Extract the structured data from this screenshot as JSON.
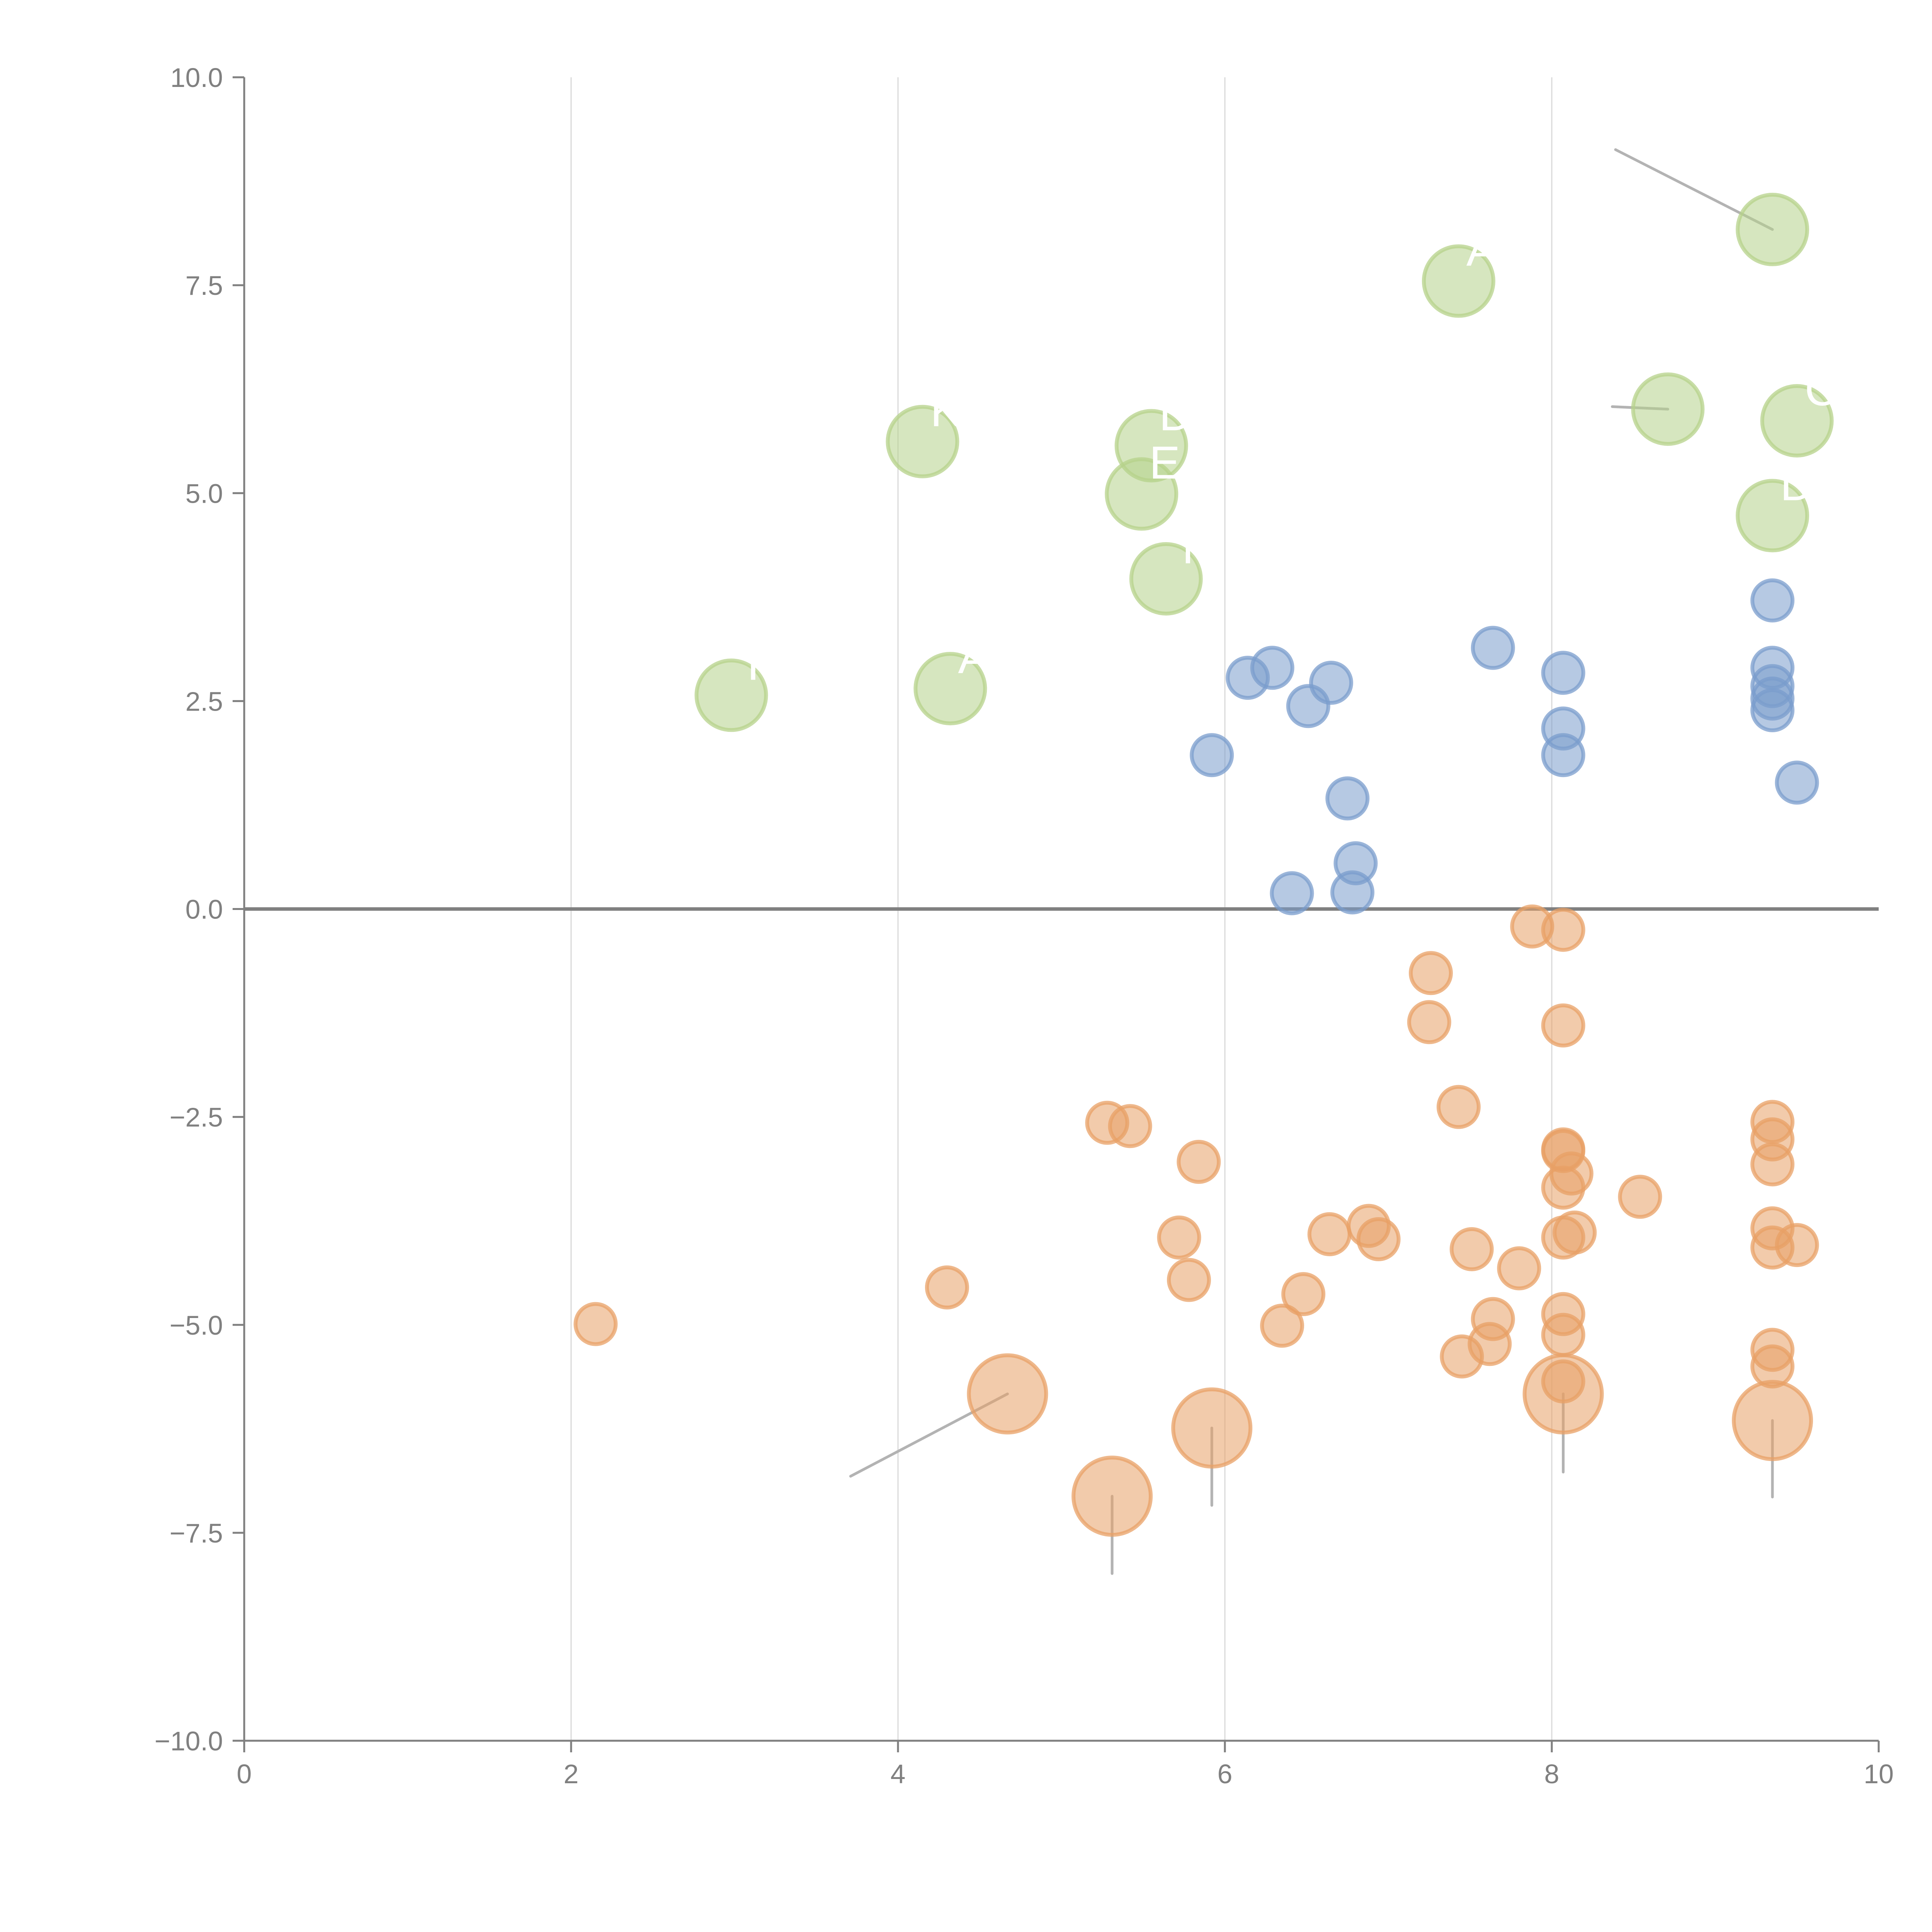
{
  "chart_data": {
    "type": "scatter",
    "title": "",
    "xlabel": "",
    "ylabel": "",
    "xlim": [
      0,
      10
    ],
    "ylim": [
      -10,
      10
    ],
    "x_ticks": [
      0,
      2,
      4,
      6,
      8,
      10
    ],
    "x_tick_labels": [
      "0",
      "2",
      "4",
      "6",
      "8",
      "10"
    ],
    "y_ticks": [
      10,
      7.5,
      5,
      2.5,
      0,
      -2.5,
      -5,
      -7.5,
      -10
    ],
    "y_tick_labels": [
      "10.0",
      "7.5",
      "5.0",
      "2.5",
      "0.0",
      "−2.5",
      "−5.0",
      "−7.5",
      "−10.0"
    ],
    "grid": "vertical",
    "zero_line": true,
    "legend": "none",
    "colors": {
      "green": "#b5d18a",
      "blue": "#7a9ccc",
      "orange": "#e8a066"
    },
    "series": [
      {
        "name": "green",
        "size": "large",
        "points": [
          {
            "x": 2.98,
            "y": 2.57,
            "label": "T"
          },
          {
            "x": 4.15,
            "y": 5.62,
            "label": "K"
          },
          {
            "x": 4.32,
            "y": 2.65,
            "label": "A"
          },
          {
            "x": 5.55,
            "y": 5.57,
            "label": "D"
          },
          {
            "x": 5.49,
            "y": 4.99,
            "label": "E"
          },
          {
            "x": 5.64,
            "y": 3.97,
            "label": "T"
          },
          {
            "x": 7.43,
            "y": 7.55,
            "label": "A"
          },
          {
            "x": 9.35,
            "y": 8.17,
            "label": ""
          },
          {
            "x": 8.71,
            "y": 6.01,
            "label": ""
          },
          {
            "x": 9.5,
            "y": 5.87,
            "label": "CA"
          },
          {
            "x": 9.35,
            "y": 4.73,
            "label": "D"
          }
        ]
      },
      {
        "name": "blue",
        "size": "small",
        "points": [
          {
            "x": 5.92,
            "y": 1.85
          },
          {
            "x": 6.14,
            "y": 2.78
          },
          {
            "x": 6.29,
            "y": 2.9
          },
          {
            "x": 6.51,
            "y": 2.44
          },
          {
            "x": 6.65,
            "y": 2.72
          },
          {
            "x": 7.64,
            "y": 3.14
          },
          {
            "x": 6.75,
            "y": 1.33
          },
          {
            "x": 6.8,
            "y": 0.55
          },
          {
            "x": 6.78,
            "y": 0.2
          },
          {
            "x": 6.41,
            "y": 0.19
          },
          {
            "x": 8.07,
            "y": 2.84
          },
          {
            "x": 8.07,
            "y": 2.17
          },
          {
            "x": 8.07,
            "y": 1.85
          },
          {
            "x": 9.35,
            "y": 3.71
          },
          {
            "x": 9.35,
            "y": 2.9
          },
          {
            "x": 9.35,
            "y": 2.68
          },
          {
            "x": 9.35,
            "y": 2.53
          },
          {
            "x": 9.35,
            "y": 2.39
          },
          {
            "x": 9.5,
            "y": 1.52
          }
        ]
      },
      {
        "name": "orange",
        "size": "small",
        "points": [
          {
            "x": 2.15,
            "y": -4.99
          },
          {
            "x": 4.3,
            "y": -4.55
          },
          {
            "x": 5.28,
            "y": -2.57
          },
          {
            "x": 5.42,
            "y": -2.61
          },
          {
            "x": 5.84,
            "y": -3.04
          },
          {
            "x": 5.72,
            "y": -3.95
          },
          {
            "x": 5.78,
            "y": -4.46
          },
          {
            "x": 6.35,
            "y": -5.01
          },
          {
            "x": 6.48,
            "y": -4.63
          },
          {
            "x": 6.64,
            "y": -3.91
          },
          {
            "x": 6.88,
            "y": -3.81
          },
          {
            "x": 6.94,
            "y": -3.97
          },
          {
            "x": 7.26,
            "y": -0.77
          },
          {
            "x": 7.25,
            "y": -1.36
          },
          {
            "x": 7.43,
            "y": -2.38
          },
          {
            "x": 7.51,
            "y": -4.09
          },
          {
            "x": 7.45,
            "y": -5.38
          },
          {
            "x": 7.62,
            "y": -5.23
          },
          {
            "x": 7.64,
            "y": -4.93
          },
          {
            "x": 7.8,
            "y": -4.32
          },
          {
            "x": 7.88,
            "y": -0.21
          },
          {
            "x": 8.07,
            "y": -0.25
          },
          {
            "x": 8.07,
            "y": -1.4
          },
          {
            "x": 8.07,
            "y": -2.89
          },
          {
            "x": 8.07,
            "y": -2.91
          },
          {
            "x": 8.12,
            "y": -3.18
          },
          {
            "x": 8.07,
            "y": -3.35
          },
          {
            "x": 8.07,
            "y": -3.95
          },
          {
            "x": 8.14,
            "y": -3.89
          },
          {
            "x": 8.07,
            "y": -4.87
          },
          {
            "x": 8.07,
            "y": -5.12
          },
          {
            "x": 8.07,
            "y": -5.68
          },
          {
            "x": 8.54,
            "y": -3.46
          },
          {
            "x": 9.35,
            "y": -2.56
          },
          {
            "x": 9.35,
            "y": -2.77
          },
          {
            "x": 9.35,
            "y": -3.07
          },
          {
            "x": 9.35,
            "y": -3.84
          },
          {
            "x": 9.35,
            "y": -4.07
          },
          {
            "x": 9.5,
            "y": -4.04
          },
          {
            "x": 9.35,
            "y": -5.3
          },
          {
            "x": 9.35,
            "y": -5.5
          }
        ]
      },
      {
        "name": "orange-large",
        "size": "large",
        "points": [
          {
            "x": 4.67,
            "y": -5.83,
            "label": ""
          },
          {
            "x": 5.31,
            "y": -7.06,
            "label": ""
          },
          {
            "x": 5.92,
            "y": -6.24,
            "label": ""
          },
          {
            "x": 8.07,
            "y": -5.83,
            "label": ""
          },
          {
            "x": 9.35,
            "y": -6.15,
            "label": ""
          }
        ]
      }
    ],
    "leader_lines": [
      {
        "from": [
          9.35,
          8.17
        ],
        "to": [
          8.39,
          9.13
        ]
      },
      {
        "from": [
          8.71,
          6.01
        ],
        "to": [
          8.37,
          6.04
        ]
      },
      {
        "from": [
          4.67,
          -5.83
        ],
        "to": [
          3.71,
          -6.82
        ]
      },
      {
        "from": [
          5.31,
          -7.06
        ],
        "to": [
          5.31,
          -7.99
        ]
      },
      {
        "from": [
          5.92,
          -6.24
        ],
        "to": [
          5.92,
          -7.17
        ]
      },
      {
        "from": [
          8.07,
          -5.83
        ],
        "to": [
          8.07,
          -6.77
        ]
      },
      {
        "from": [
          9.35,
          -6.15
        ],
        "to": [
          9.35,
          -7.07
        ]
      }
    ]
  }
}
